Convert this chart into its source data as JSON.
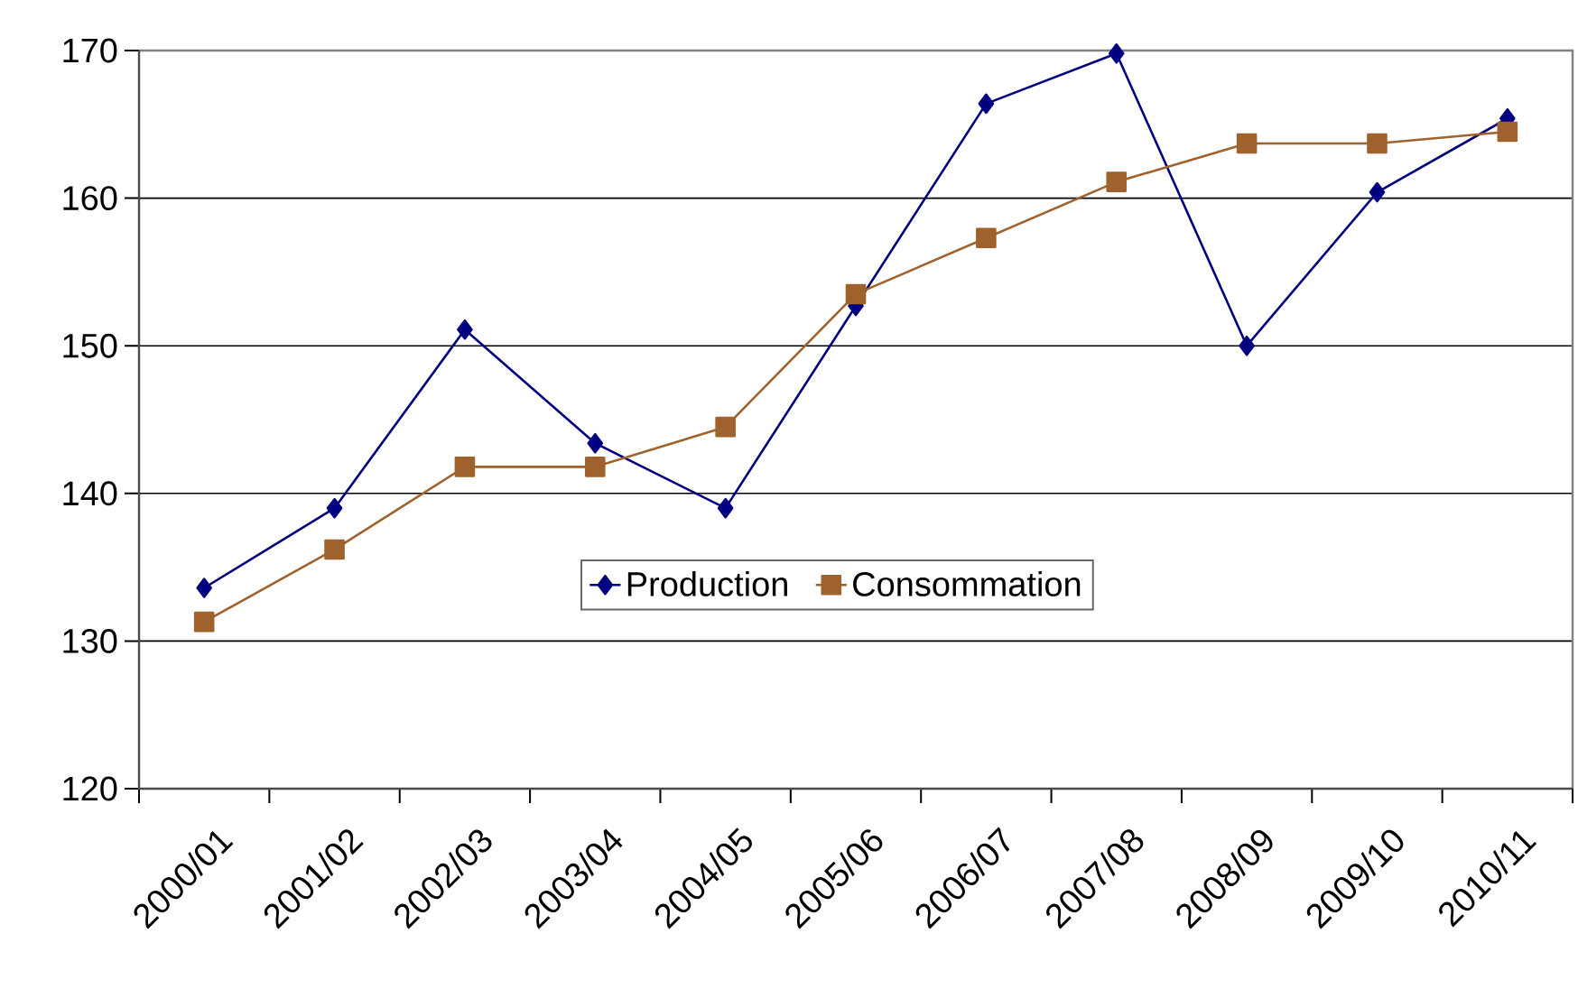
{
  "chart_data": {
    "type": "line",
    "categories": [
      "2000/01",
      "2001/02",
      "2002/03",
      "2003/04",
      "2004/05",
      "2005/06",
      "2006/07",
      "2007/08",
      "2008/09",
      "2009/10",
      "2010/11"
    ],
    "series": [
      {
        "name": "Production",
        "color": "#000080",
        "marker": "diamond",
        "values": [
          133.6,
          139.0,
          151.1,
          143.4,
          139.0,
          152.7,
          166.4,
          169.8,
          150.0,
          160.4,
          165.4
        ]
      },
      {
        "name": "Consommation",
        "color": "#a0622d",
        "marker": "square",
        "values": [
          131.3,
          136.2,
          141.8,
          141.8,
          144.5,
          153.5,
          157.3,
          161.1,
          163.7,
          163.7,
          164.5
        ]
      }
    ],
    "ylim": [
      120,
      170
    ],
    "yticks": [
      120,
      130,
      140,
      150,
      160,
      170
    ],
    "grid": "y",
    "legend": "bottom",
    "line_style": "solid"
  }
}
